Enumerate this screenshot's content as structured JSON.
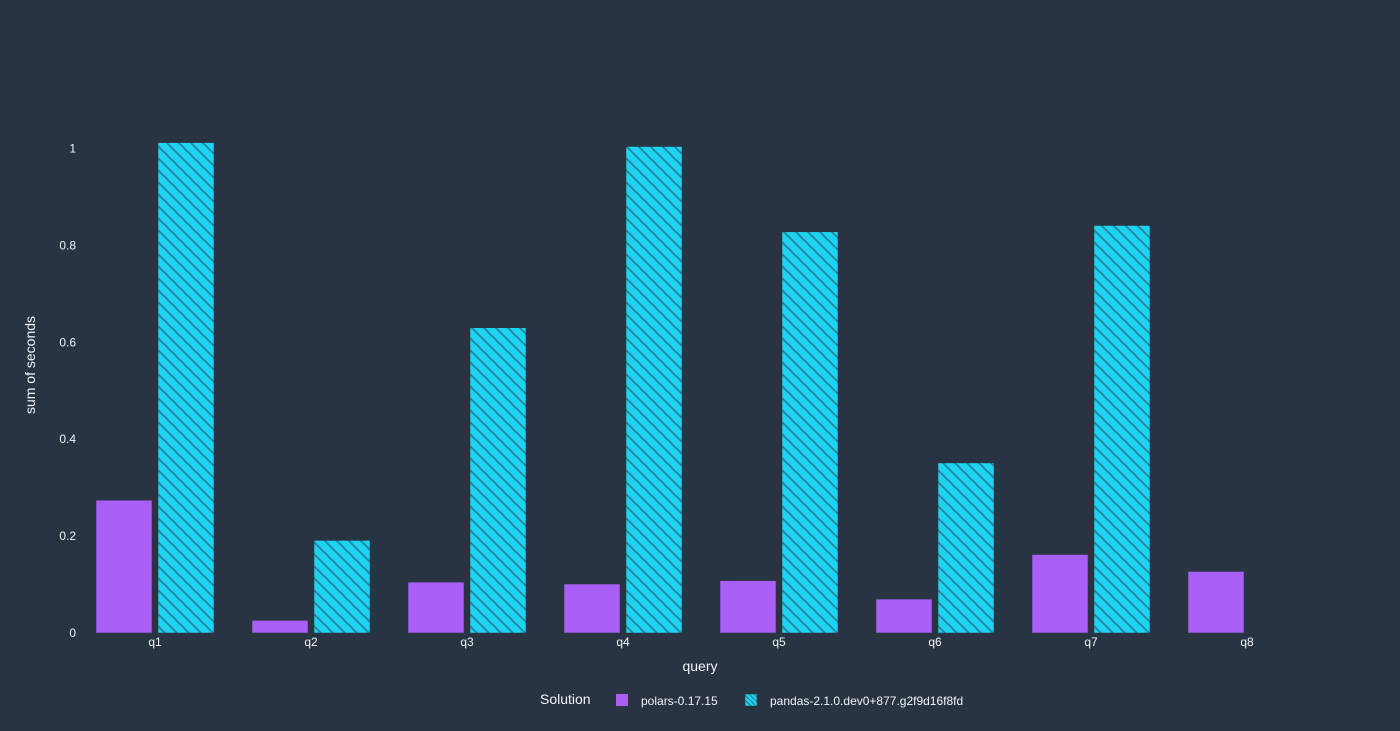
{
  "chart_data": {
    "type": "bar",
    "categories": [
      "q1",
      "q2",
      "q3",
      "q4",
      "q5",
      "q6",
      "q7",
      "q8"
    ],
    "series": [
      {
        "name": "polars-0.17.15",
        "color": "#a95ef6",
        "pattern": "none",
        "values": [
          0.274,
          0.026,
          0.105,
          0.101,
          0.108,
          0.07,
          0.162,
          0.127
        ]
      },
      {
        "name": "pandas-2.1.0.dev0+877.g2f9d16f8fd",
        "color": "#1dd3f1",
        "pattern": "diagonal-hatch",
        "values": [
          1.012,
          0.191,
          0.63,
          1.004,
          0.828,
          0.351,
          0.841,
          null
        ]
      }
    ],
    "xlabel": "query",
    "ylabel": "sum of seconds",
    "ylim": [
      0,
      1.1
    ],
    "yticks": [
      0,
      0.2,
      0.4,
      0.6,
      0.8,
      1
    ],
    "ytick_labels": [
      "0",
      "0.2",
      "0.4",
      "0.6",
      "0.8",
      "1"
    ],
    "grid": false,
    "legend": {
      "title": "Solution",
      "placement": "bottom-center",
      "orientation": "horizontal"
    }
  }
}
